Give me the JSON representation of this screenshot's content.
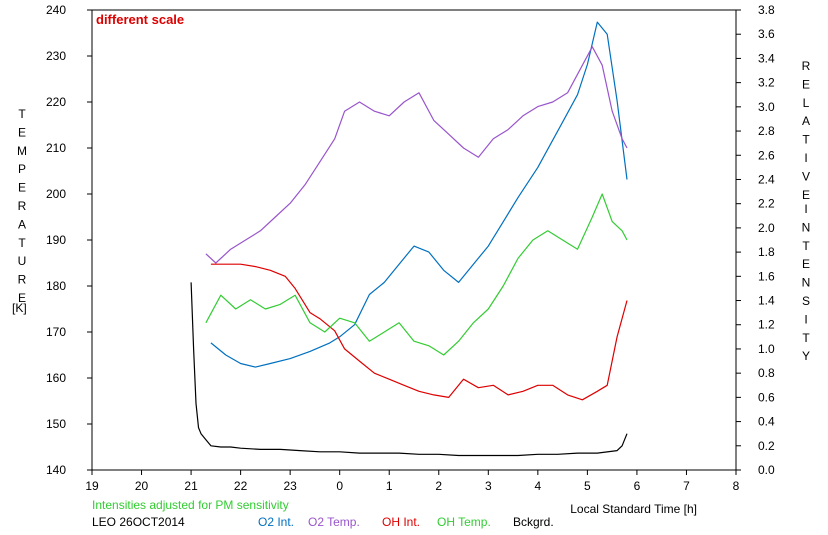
{
  "chart_data": {
    "type": "line",
    "annotation": "different scale",
    "xlabel": "Local Standard Time [h]",
    "x_ticks": [
      "19",
      "20",
      "21",
      "22",
      "23",
      "0",
      "1",
      "2",
      "3",
      "4",
      "5",
      "6",
      "7",
      "8"
    ],
    "xlim": [
      19,
      32
    ],
    "left_axis": {
      "label_letters": [
        "T",
        "E",
        "M",
        "P",
        "E",
        "R",
        "A",
        "T",
        "U",
        "R",
        "E"
      ],
      "unit": "[K]",
      "ylim": [
        140,
        240
      ],
      "ticks": [
        "140",
        "150",
        "160",
        "170",
        "180",
        "190",
        "200",
        "210",
        "220",
        "230",
        "240"
      ]
    },
    "right_axis": {
      "label_letters_1": [
        "R",
        "E",
        "L",
        "A",
        "T",
        "I",
        "V",
        "E"
      ],
      "label_letters_2": [
        "I",
        "N",
        "T",
        "E",
        "N",
        "S",
        "I",
        "T",
        "Y"
      ],
      "ylim": [
        0.0,
        3.8
      ],
      "ticks": [
        "0.0",
        "0.2",
        "0.4",
        "0.6",
        "0.8",
        "1.0",
        "1.2",
        "1.4",
        "1.6",
        "1.8",
        "2.0",
        "2.2",
        "2.4",
        "2.6",
        "2.8",
        "3.0",
        "3.2",
        "3.4",
        "3.6",
        "3.8"
      ]
    },
    "note": "Intensities adjusted for PM sensitivity",
    "station": "LEO 26OCT2014",
    "series": [
      {
        "name": "O2 Int.",
        "color": "#0070c0",
        "axis": "right",
        "x": [
          21.4,
          21.7,
          22.0,
          22.3,
          22.6,
          23.0,
          23.4,
          23.8,
          24.0,
          24.3,
          24.6,
          24.9,
          25.2,
          25.5,
          25.8,
          26.1,
          26.4,
          26.7,
          27.0,
          27.3,
          27.6,
          28.0,
          28.4,
          28.8,
          29.0,
          29.2,
          29.4,
          29.6,
          29.8
        ],
        "values": [
          1.05,
          0.95,
          0.88,
          0.85,
          0.88,
          0.92,
          0.98,
          1.05,
          1.1,
          1.2,
          1.45,
          1.55,
          1.7,
          1.85,
          1.8,
          1.65,
          1.55,
          1.7,
          1.85,
          2.05,
          2.25,
          2.5,
          2.8,
          3.1,
          3.35,
          3.7,
          3.6,
          3.05,
          2.4
        ]
      },
      {
        "name": "O2 Temp.",
        "color": "#9955cc",
        "axis": "left",
        "x": [
          21.3,
          21.5,
          21.8,
          22.1,
          22.4,
          22.7,
          23.0,
          23.3,
          23.6,
          23.9,
          24.1,
          24.4,
          24.7,
          25.0,
          25.3,
          25.6,
          25.9,
          26.2,
          26.5,
          26.8,
          27.1,
          27.4,
          27.7,
          28.0,
          28.3,
          28.6,
          28.9,
          29.1,
          29.3,
          29.5,
          29.7,
          29.8
        ],
        "values": [
          187,
          185,
          188,
          190,
          192,
          195,
          198,
          202,
          207,
          212,
          218,
          220,
          218,
          217,
          220,
          222,
          216,
          213,
          210,
          208,
          212,
          214,
          217,
          219,
          220,
          222,
          228,
          232,
          228,
          218,
          212,
          210
        ]
      },
      {
        "name": "OH Int.",
        "color": "#dd0000",
        "axis": "right",
        "x": [
          21.4,
          21.7,
          22.0,
          22.3,
          22.6,
          22.9,
          23.1,
          23.4,
          23.6,
          23.9,
          24.1,
          24.4,
          24.7,
          25.0,
          25.3,
          25.6,
          25.9,
          26.2,
          26.5,
          26.8,
          27.1,
          27.4,
          27.7,
          28.0,
          28.3,
          28.6,
          28.9,
          29.2,
          29.4,
          29.6,
          29.8
        ],
        "values": [
          1.7,
          1.7,
          1.7,
          1.68,
          1.65,
          1.6,
          1.5,
          1.3,
          1.25,
          1.15,
          1.0,
          0.9,
          0.8,
          0.75,
          0.7,
          0.65,
          0.62,
          0.6,
          0.75,
          0.68,
          0.7,
          0.62,
          0.65,
          0.7,
          0.7,
          0.62,
          0.58,
          0.65,
          0.7,
          1.1,
          1.4
        ]
      },
      {
        "name": "OH Temp.",
        "color": "#33cc33",
        "axis": "left",
        "x": [
          21.3,
          21.6,
          21.9,
          22.2,
          22.5,
          22.8,
          23.1,
          23.4,
          23.7,
          24.0,
          24.3,
          24.6,
          24.9,
          25.2,
          25.5,
          25.8,
          26.1,
          26.4,
          26.7,
          27.0,
          27.3,
          27.6,
          27.9,
          28.2,
          28.5,
          28.8,
          29.1,
          29.3,
          29.5,
          29.7,
          29.8
        ],
        "values": [
          172,
          178,
          175,
          177,
          175,
          176,
          178,
          172,
          170,
          173,
          172,
          168,
          170,
          172,
          168,
          167,
          165,
          168,
          172,
          175,
          180,
          186,
          190,
          192,
          190,
          188,
          195,
          200,
          194,
          192,
          190
        ]
      },
      {
        "name": "Bckgrd.",
        "color": "#000000",
        "axis": "right",
        "x": [
          21.0,
          21.05,
          21.1,
          21.15,
          21.2,
          21.3,
          21.4,
          21.6,
          21.8,
          22.0,
          22.4,
          22.8,
          23.2,
          23.6,
          24.0,
          24.4,
          24.8,
          25.2,
          25.6,
          26.0,
          26.4,
          26.8,
          27.2,
          27.6,
          28.0,
          28.4,
          28.8,
          29.2,
          29.6,
          29.7,
          29.8
        ],
        "values": [
          1.55,
          1.0,
          0.55,
          0.35,
          0.3,
          0.25,
          0.2,
          0.19,
          0.19,
          0.18,
          0.17,
          0.17,
          0.16,
          0.15,
          0.15,
          0.14,
          0.14,
          0.14,
          0.13,
          0.13,
          0.12,
          0.12,
          0.12,
          0.12,
          0.13,
          0.13,
          0.14,
          0.14,
          0.16,
          0.2,
          0.3
        ]
      }
    ]
  }
}
